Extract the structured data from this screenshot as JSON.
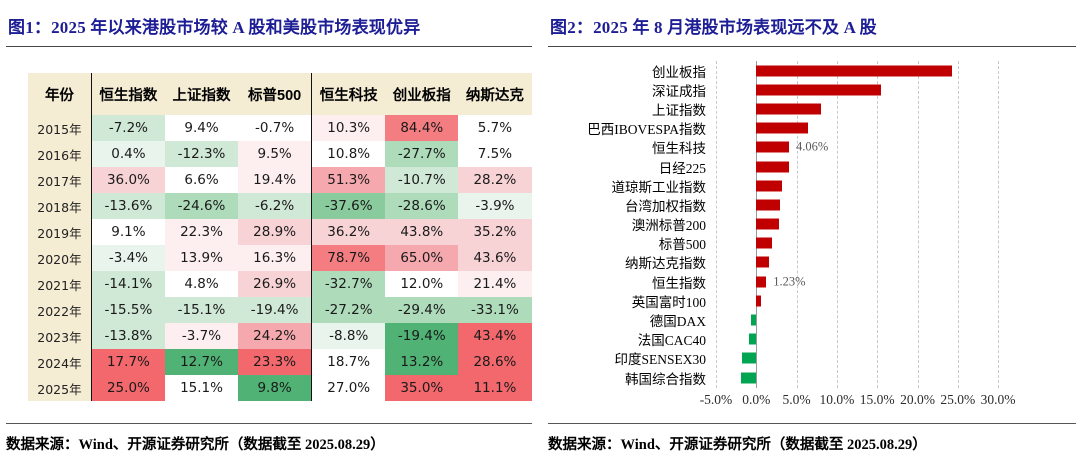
{
  "left_panel": {
    "title": "图1：2025 年以来港股市场较 A 股和美股市场表现优异",
    "source": "数据来源：Wind、开源证券研究所（数据截至 2025.08.29）"
  },
  "right_panel": {
    "title": "图2：2025 年 8 月港股市场表现远不及 A 股",
    "source": "数据来源：Wind、开源证券研究所（数据截至 2025.08.29）"
  },
  "title_color": "#1d1d96",
  "palette": {
    "w": "#ffffff",
    "g1": "#e9f4ec",
    "g2": "#d0e8d6",
    "g3": "#aedbba",
    "g4": "#8acb9d",
    "g5": "#50b274",
    "r1": "#fdeff0",
    "r2": "#f8d3d6",
    "r3": "#f5a9ae",
    "r4": "#f37d81",
    "r5": "#f2686d"
  },
  "chart_data": [
    {
      "type": "table",
      "title": "图1：2025 年以来港股市场较 A 股和美股市场表现优异",
      "columns": [
        "年份",
        "恒生指数",
        "上证指数",
        "标普500",
        "恒生科技",
        "创业板指",
        "纳斯达克"
      ],
      "rows": [
        {
          "year": "2015年",
          "cells": [
            {
              "v": "-7.2%",
              "c": "g2"
            },
            {
              "v": "9.4%",
              "c": "w"
            },
            {
              "v": "-0.7%",
              "c": "w"
            },
            {
              "v": "10.3%",
              "c": "r1"
            },
            {
              "v": "84.4%",
              "c": "r4"
            },
            {
              "v": "5.7%",
              "c": "w"
            }
          ]
        },
        {
          "year": "2016年",
          "cells": [
            {
              "v": "0.4%",
              "c": "g1"
            },
            {
              "v": "-12.3%",
              "c": "g2"
            },
            {
              "v": "9.5%",
              "c": "r1"
            },
            {
              "v": "10.8%",
              "c": "w"
            },
            {
              "v": "-27.7%",
              "c": "g3"
            },
            {
              "v": "7.5%",
              "c": "w"
            }
          ]
        },
        {
          "year": "2017年",
          "cells": [
            {
              "v": "36.0%",
              "c": "r2"
            },
            {
              "v": "6.6%",
              "c": "w"
            },
            {
              "v": "19.4%",
              "c": "r1"
            },
            {
              "v": "51.3%",
              "c": "r3"
            },
            {
              "v": "-10.7%",
              "c": "g2"
            },
            {
              "v": "28.2%",
              "c": "r2"
            }
          ]
        },
        {
          "year": "2018年",
          "cells": [
            {
              "v": "-13.6%",
              "c": "g2"
            },
            {
              "v": "-24.6%",
              "c": "g3"
            },
            {
              "v": "-6.2%",
              "c": "g2"
            },
            {
              "v": "-37.6%",
              "c": "g4"
            },
            {
              "v": "-28.6%",
              "c": "g3"
            },
            {
              "v": "-3.9%",
              "c": "g1"
            }
          ]
        },
        {
          "year": "2019年",
          "cells": [
            {
              "v": "9.1%",
              "c": "w"
            },
            {
              "v": "22.3%",
              "c": "r1"
            },
            {
              "v": "28.9%",
              "c": "r2"
            },
            {
              "v": "36.2%",
              "c": "r2"
            },
            {
              "v": "43.8%",
              "c": "r2"
            },
            {
              "v": "35.2%",
              "c": "r2"
            }
          ]
        },
        {
          "year": "2020年",
          "cells": [
            {
              "v": "-3.4%",
              "c": "g1"
            },
            {
              "v": "13.9%",
              "c": "r1"
            },
            {
              "v": "16.3%",
              "c": "r1"
            },
            {
              "v": "78.7%",
              "c": "r4"
            },
            {
              "v": "65.0%",
              "c": "r3"
            },
            {
              "v": "43.6%",
              "c": "r2"
            }
          ]
        },
        {
          "year": "2021年",
          "cells": [
            {
              "v": "-14.1%",
              "c": "g2"
            },
            {
              "v": "4.8%",
              "c": "w"
            },
            {
              "v": "26.9%",
              "c": "r2"
            },
            {
              "v": "-32.7%",
              "c": "g3"
            },
            {
              "v": "12.0%",
              "c": "w"
            },
            {
              "v": "21.4%",
              "c": "r1"
            }
          ]
        },
        {
          "year": "2022年",
          "cells": [
            {
              "v": "-15.5%",
              "c": "g2"
            },
            {
              "v": "-15.1%",
              "c": "g2"
            },
            {
              "v": "-19.4%",
              "c": "g2"
            },
            {
              "v": "-27.2%",
              "c": "g3"
            },
            {
              "v": "-29.4%",
              "c": "g3"
            },
            {
              "v": "-33.1%",
              "c": "g3"
            }
          ]
        },
        {
          "year": "2023年",
          "cells": [
            {
              "v": "-13.8%",
              "c": "g2"
            },
            {
              "v": "-3.7%",
              "c": "r1"
            },
            {
              "v": "24.2%",
              "c": "r3"
            },
            {
              "v": "-8.8%",
              "c": "g1"
            },
            {
              "v": "-19.4%",
              "c": "g5"
            },
            {
              "v": "43.4%",
              "c": "r5"
            }
          ]
        },
        {
          "year": "2024年",
          "cells": [
            {
              "v": "17.7%",
              "c": "r5"
            },
            {
              "v": "12.7%",
              "c": "g5"
            },
            {
              "v": "23.3%",
              "c": "r5"
            },
            {
              "v": "18.7%",
              "c": "w"
            },
            {
              "v": "13.2%",
              "c": "g5"
            },
            {
              "v": "28.6%",
              "c": "r5"
            }
          ]
        },
        {
          "year": "2025年",
          "cells": [
            {
              "v": "25.0%",
              "c": "r5"
            },
            {
              "v": "15.1%",
              "c": "w"
            },
            {
              "v": "9.8%",
              "c": "g5"
            },
            {
              "v": "27.0%",
              "c": "w"
            },
            {
              "v": "35.0%",
              "c": "r5"
            },
            {
              "v": "11.1%",
              "c": "r5"
            }
          ]
        }
      ]
    },
    {
      "type": "bar",
      "title": "图2：2025 年 8 月港股市场表现远不及 A 股",
      "orientation": "horizontal",
      "categories": [
        "创业板指",
        "深证成指",
        "上证指数",
        "巴西IBOVESPA指数",
        "恒生科技",
        "日经225",
        "道琼斯工业指数",
        "台湾加权指数",
        "澳洲标普200",
        "标普500",
        "纳斯达克指数",
        "恒生指数",
        "英国富时100",
        "德国DAX",
        "法国CAC40",
        "印度SENSEX30",
        "韩国综合指数"
      ],
      "values": [
        24.3,
        15.5,
        8.0,
        6.4,
        4.06,
        4.0,
        3.2,
        3.0,
        2.8,
        2.0,
        1.6,
        1.23,
        0.6,
        -0.7,
        -0.9,
        -1.8,
        -1.9
      ],
      "point_labels": {
        "恒生科技": "4.06%",
        "恒生指数": "1.23%"
      },
      "x_ticks": [
        "-5.0%",
        "0.0%",
        "5.0%",
        "10.0%",
        "15.0%",
        "20.0%",
        "25.0%",
        "30.0%"
      ],
      "xlim": [
        -5,
        30
      ],
      "grid": "vertical-dashed",
      "positive_color": "#c00000",
      "negative_color": "#00a551"
    }
  ]
}
